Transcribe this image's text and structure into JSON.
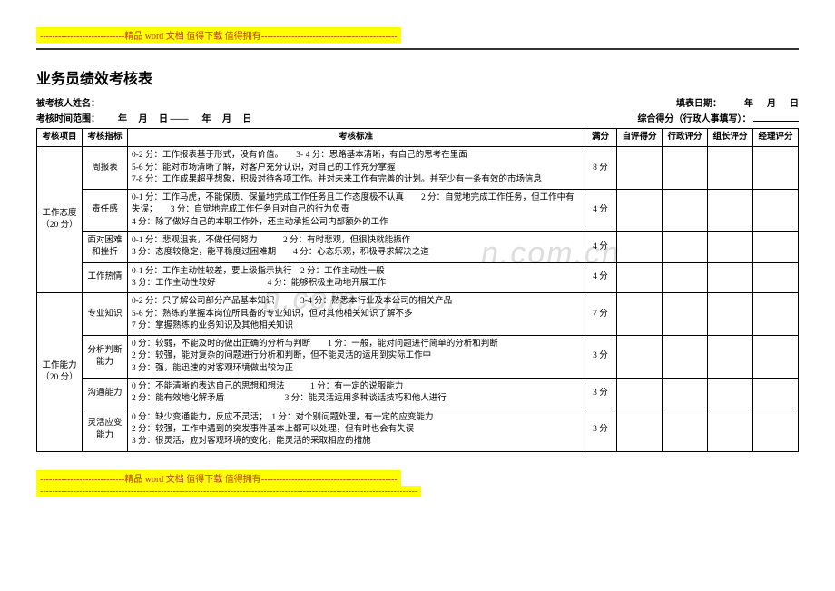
{
  "banner_top": "----------------------------精品 word 文档  值得下载  值得拥有---------------------------------------------",
  "banner_bottom_line1": "----------------------------精品 word 文档  值得下载  值得拥有---------------------------------------------",
  "banner_bottom_line2": "-----------------------------------------------------------------------------------------------------------------------------",
  "title": "业务员绩效考核表",
  "meta": {
    "name_label": "被考核人姓名：",
    "fill_date_label": "填表日期：",
    "year": "年",
    "month": "月",
    "day": "日",
    "range_label": "考核时间范围：",
    "range_sep": "——",
    "total_score_label": "综合得分（行政人事填写）："
  },
  "headers": {
    "project": "考核项目",
    "indicator": "考核指标",
    "standard": "考核标准",
    "full_score": "满分",
    "self": "自评得分",
    "admin": "行政评分",
    "leader": "组长评分",
    "manager": "经理评分"
  },
  "watermark": "n.com.cn",
  "groups": [
    {
      "project": "工作态度\n（20 分）",
      "rows": [
        {
          "indicator": "周报表",
          "standard": "0-2 分：工作报表基于形式，没有价值。　　3- 4 分：思路基本清晰，有自己的思考在里面\n5-6 分：能对市场清晰了解，对客户充分认识，对自己的工作充分掌握\n7-8 分：工作成果超乎想象，积极对待各项工作。并对未来工作有完善的计划。并至少有一条有效的市场信息",
          "score": "8 分"
        },
        {
          "indicator": "责任感",
          "standard": "0-1 分：工作马虎，不能保质、保量地完成工作任务且工作态度极不认真　　2 分：自觉地完成工作任务，但工作中有失误；　　3 分：自觉地完成工作任务且对自己的行为负责\n4 分：除了做好自己的本职工作外，还主动承担公司内部额外的工作",
          "score": "4 分"
        },
        {
          "indicator": "面对困难和挫折",
          "standard": "0-1 分：悲观沮丧，不做任何努力　　　2 分：有时悲观，但很快就能振作\n3 分：态度较稳定，能平稳度过困难期　　4 分：心态乐观，积极寻求解决之道",
          "score": "4 分"
        },
        {
          "indicator": "工作热情",
          "standard": "0-1 分：工作主动性较差，要上级指示执行　2 分：工作主动性一般\n3 分：工作主动性较好　　　　　　4 分：能够积极主动地开展工作",
          "score": "4 分"
        }
      ]
    },
    {
      "project": "工作能力\n（20 分）",
      "rows": [
        {
          "indicator": "专业知识",
          "standard": "0-2 分：只了解公司部分产品基本知识　　　3-4 分：熟悉本行业及本公司的相关产品\n5-6 分：熟练的掌握本岗位所具备的专业知识，但对其他相关知识了解不多\n7 分：掌握熟练的业务知识及其他相关知识",
          "score": "7 分"
        },
        {
          "indicator": "分析判断能力",
          "standard": "0 分：较弱，不能及时的做出正确的分析与判断　　1 分：一般，能对问题进行简单的分析和判断\n2 分：较强，能对复杂的问题进行分析和判断，但不能灵活的运用到实际工作中\n3 分：强，能迅速的对客观环境做出较为正",
          "score": "3 分"
        },
        {
          "indicator": "沟通能力",
          "standard": "0 分：不能清晰的表达自己的思想和想法　　　1 分：有一定的说服能力\n2 分：能有效地化解矛盾　　　　　　　3 分：能灵活运用多种谈话技巧和他人进行",
          "score": "3 分"
        },
        {
          "indicator": "灵活应变能力",
          "standard": "0 分：缺少变通能力，反应不灵活；　1 分：对个别问题处理，有一定的应变能力\n2 分：较强，工作中遇到的突发事件基本上都可以处理，但有时也会有失误\n3 分：很灵活，应对客观环境的变化，能灵活的采取相应的措施",
          "score": "3 分"
        }
      ]
    }
  ]
}
